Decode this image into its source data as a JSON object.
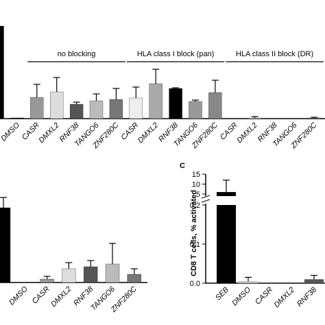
{
  "chart_data": [
    {
      "type": "bar",
      "categories": [
        null,
        "DMSO",
        "CASR",
        "DMXL2",
        "RNF38",
        "TANGO6",
        "ZNF280C",
        "CASR",
        "DMXL2",
        "RNF38",
        "TANGO6",
        "ZNF280C",
        "CASR",
        "DMXL2",
        "RNF38",
        "TANGO6",
        "ZNF280C"
      ],
      "values": [
        135,
        1,
        31,
        39,
        21,
        26,
        28,
        30,
        51,
        44,
        25,
        38,
        0,
        1,
        0,
        0,
        1
      ],
      "errors": [
        0,
        0,
        19,
        21,
        3,
        10,
        16,
        16,
        21,
        1,
        2,
        18,
        0,
        2,
        0,
        0,
        1
      ],
      "colors": [
        "#000000",
        "#000000",
        "#999999",
        "#dddddd",
        "#555555",
        "#bbbbbb",
        "#777777",
        "#eeeeee",
        "#aaaaaa",
        "#000000",
        "#999999",
        "#888888",
        "#999999",
        "#dddddd",
        "#555555",
        "#bbbbbb",
        "#777777"
      ],
      "ylim": [
        0,
        135
      ],
      "groups": [
        {
          "label": "no blocking",
          "first": 2,
          "last": 6
        },
        {
          "label": "HLA class I block (pan)",
          "first": 7,
          "last": 11
        },
        {
          "label": "HLA class II block (DR)",
          "first": 12,
          "last": 16
        }
      ]
    },
    {
      "type": "bar",
      "categories": [
        null,
        "DMSO",
        "CASR",
        "DMXL2",
        "RNF38",
        "TANGO6",
        "ZNF280C"
      ],
      "values": [
        109,
        0,
        5,
        20,
        23,
        27,
        12
      ],
      "errors": [
        15,
        0,
        4,
        9,
        9,
        30,
        8
      ],
      "colors": [
        "#000000",
        "#000000",
        "#999999",
        "#dddddd",
        "#555555",
        "#bbbbbb",
        "#777777"
      ],
      "ylim": [
        0,
        125
      ]
    },
    {
      "type": "broken-bar",
      "panel": "C",
      "ylabel": "CD8 T cells, % activated",
      "categories": [
        "SEB",
        "DMSO",
        "CASR",
        "DMXL2",
        "RNF38"
      ],
      "values": [
        6,
        0.005,
        0,
        0,
        0.01
      ],
      "errors": [
        6,
        0.01,
        0,
        0,
        0.01
      ],
      "colors": [
        "#000000",
        "#bbbbbb",
        "#999999",
        "#dddddd",
        "#555555"
      ],
      "ylim": [
        0,
        0.2
      ],
      "yticks": [
        {
          "value": 0,
          "label": "0.0"
        },
        0.1,
        0.2
      ],
      "y2lim": [
        5,
        15
      ],
      "y2ticks": [
        5,
        10,
        15
      ]
    }
  ]
}
